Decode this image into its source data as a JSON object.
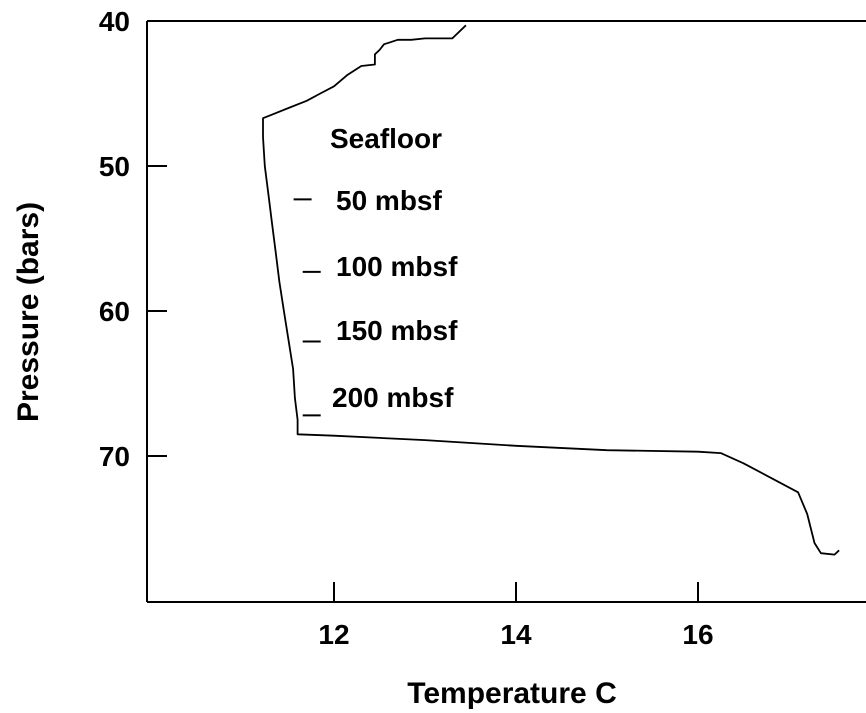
{
  "chart_data": {
    "type": "line",
    "title": "",
    "xlabel": "Temperature C",
    "ylabel": "Pressure (bars)",
    "xlim": [
      10.0,
      17.6
    ],
    "ylim": [
      40,
      80
    ],
    "y_inverted": true,
    "grid": false,
    "legend": "none",
    "xticks": [
      12,
      14,
      16
    ],
    "yticks": [
      40,
      50,
      60,
      70
    ],
    "line_color": "#000000",
    "series": [
      {
        "x": [
          13.45,
          13.3,
          13.0,
          12.85,
          12.7,
          12.6,
          12.55,
          12.5,
          12.45,
          12.45,
          12.3,
          12.15,
          12.0,
          11.85,
          11.7,
          11.5,
          11.3,
          11.22,
          11.22,
          11.24,
          11.28,
          11.32,
          11.36,
          11.4,
          11.45,
          11.5,
          11.55,
          11.57,
          11.6,
          11.6,
          11.6,
          12.0,
          13.0,
          14.0,
          15.0,
          16.0,
          16.25,
          16.5,
          16.8,
          17.1,
          17.2,
          17.28,
          17.35,
          17.5,
          17.55
        ],
        "y": [
          40.3,
          41.2,
          41.2,
          41.3,
          41.3,
          41.5,
          41.6,
          42.0,
          42.3,
          43.0,
          43.1,
          43.7,
          44.5,
          45.0,
          45.5,
          46.0,
          46.5,
          46.7,
          48.0,
          50.0,
          52.0,
          54.0,
          56.0,
          58.0,
          60.0,
          62.0,
          64.0,
          66.0,
          67.5,
          68.5,
          68.5,
          68.6,
          68.9,
          69.3,
          69.6,
          69.7,
          69.8,
          70.5,
          71.5,
          72.5,
          74.0,
          76.0,
          76.7,
          76.8,
          76.5
        ]
      }
    ],
    "annotations": [
      {
        "label": "Seafloor",
        "marker_y": null,
        "marker_x": null
      },
      {
        "label": "50 mbsf",
        "marker_y": 52.3,
        "marker_x": 11.6
      },
      {
        "label": "100 mbsf",
        "marker_y": 57.3,
        "marker_x": 11.7
      },
      {
        "label": "150 mbsf",
        "marker_y": 62.1,
        "marker_x": 11.7
      },
      {
        "label": "200 mbsf",
        "marker_y": 67.2,
        "marker_x": 11.7
      }
    ]
  }
}
